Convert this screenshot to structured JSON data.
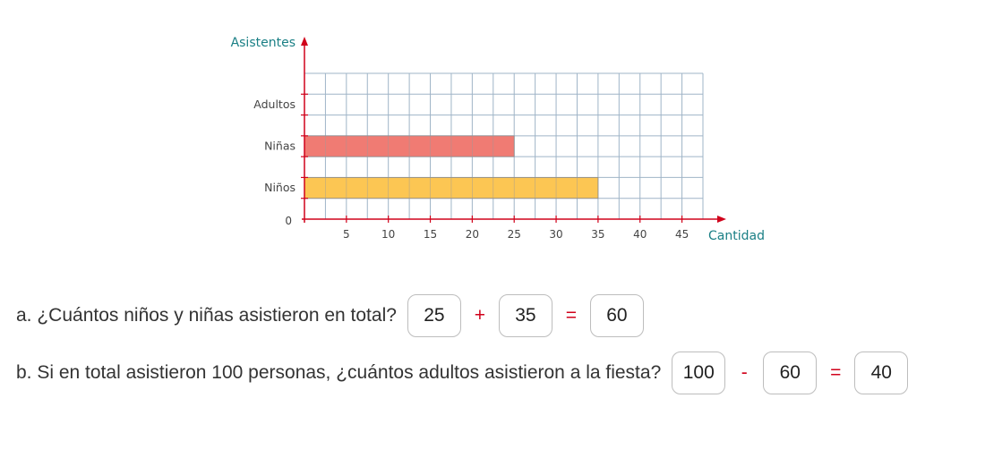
{
  "chart_data": {
    "type": "bar",
    "orientation": "horizontal",
    "categories": [
      "Adultos",
      "Niñas",
      "Niños"
    ],
    "values": [
      null,
      25,
      35
    ],
    "colors": [
      "#ffffff",
      "#f07b73",
      "#fcc653"
    ],
    "xlabel": "Cantidad",
    "ylabel": "Asistentes",
    "xlim": [
      0,
      47.5
    ],
    "x_ticks": [
      5,
      10,
      15,
      20,
      25,
      30,
      35,
      40,
      45
    ],
    "origin_label": "0",
    "grid": true
  },
  "questions": [
    {
      "text": "a. ¿Cuántos niños y niñas asistieron en total?",
      "operand1": "25",
      "operator": "+",
      "operand2": "35",
      "equals": "=",
      "result": "60"
    },
    {
      "text": "b. Si en total asistieron 100 personas, ¿cuántos adultos asistieron a la fiesta?",
      "operand1": "100",
      "operator": "-",
      "operand2": "60",
      "equals": "=",
      "result": "40"
    }
  ]
}
